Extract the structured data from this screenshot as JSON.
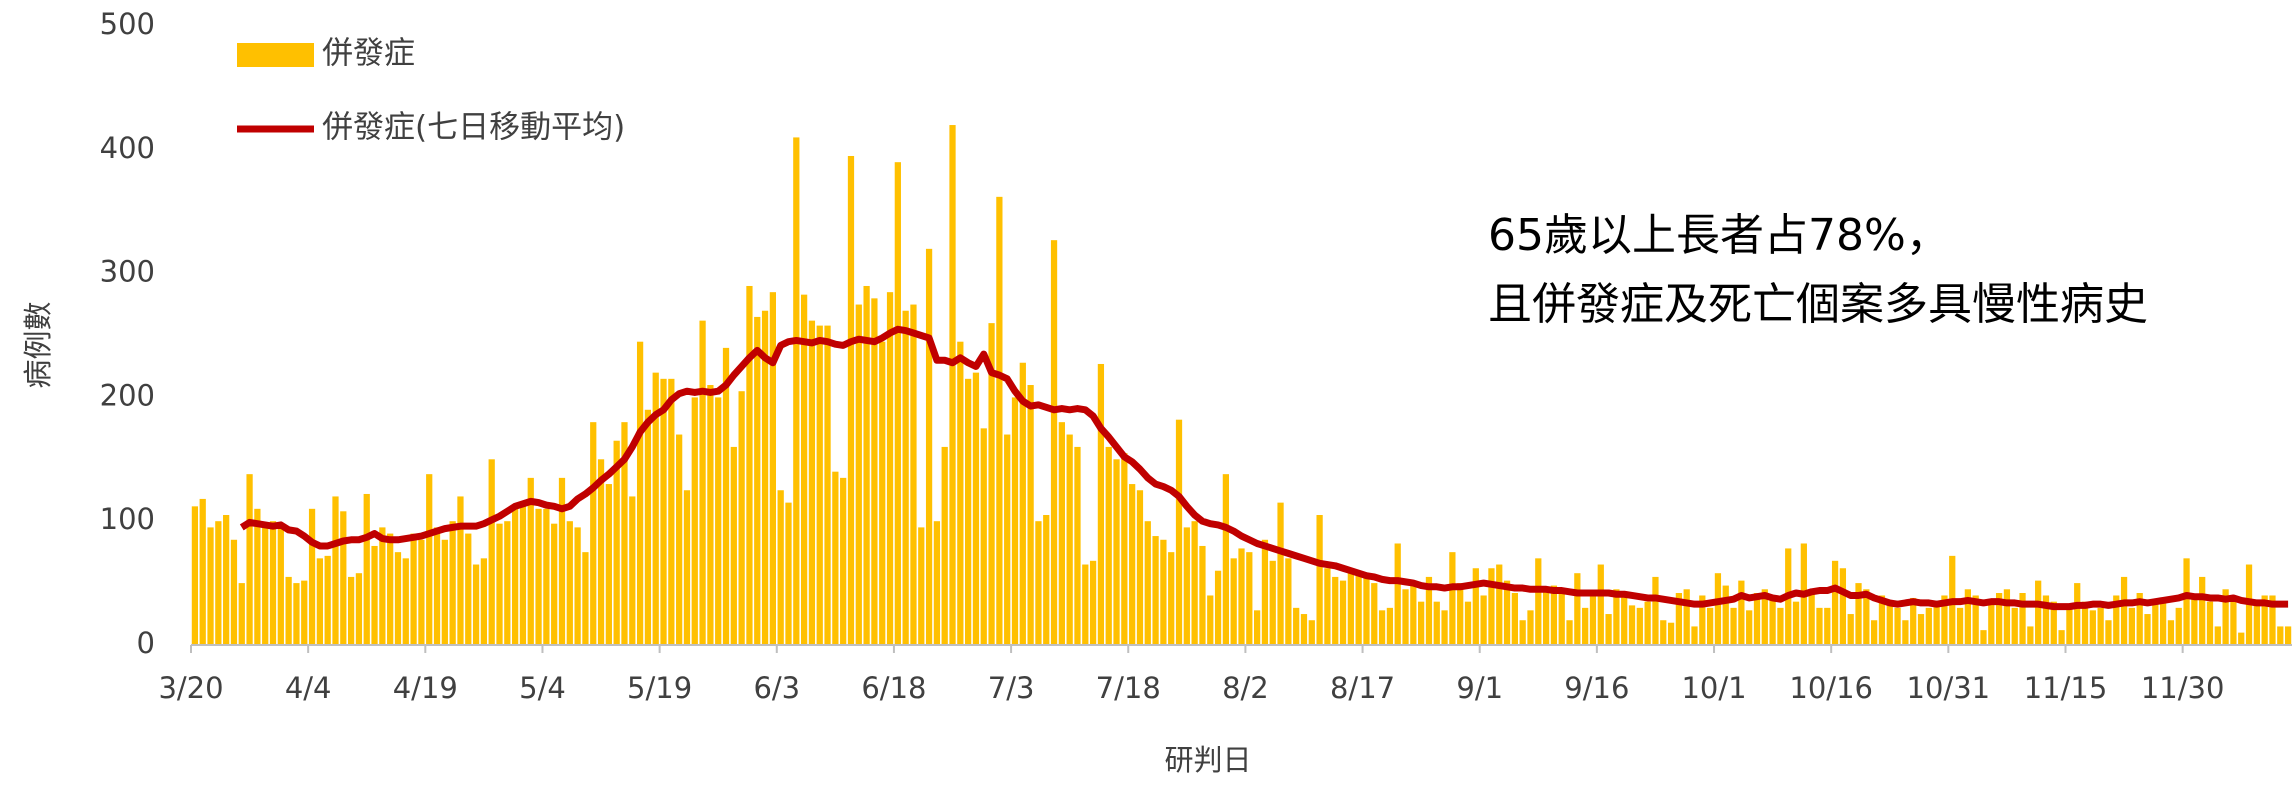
{
  "chart_data": {
    "type": "bar",
    "y_label": "病例數",
    "x_label": "研判日",
    "annotations": [
      "65歲以上長者占78%，",
      "且併發症及死亡個案多具慢性病史"
    ],
    "categories": [
      "3/20",
      null,
      null,
      null,
      null,
      null,
      null,
      null,
      null,
      null,
      null,
      null,
      null,
      null,
      null,
      "4/4",
      null,
      null,
      null,
      null,
      null,
      null,
      null,
      null,
      null,
      null,
      null,
      null,
      null,
      null,
      "4/19",
      null,
      null,
      null,
      null,
      null,
      null,
      null,
      null,
      null,
      null,
      null,
      null,
      null,
      null,
      "5/4",
      null,
      null,
      null,
      null,
      null,
      null,
      null,
      null,
      null,
      null,
      null,
      null,
      null,
      null,
      "5/19",
      null,
      null,
      null,
      null,
      null,
      null,
      null,
      null,
      null,
      null,
      null,
      null,
      null,
      null,
      "6/3",
      null,
      null,
      null,
      null,
      null,
      null,
      null,
      null,
      null,
      null,
      null,
      null,
      null,
      null,
      "6/18",
      null,
      null,
      null,
      null,
      null,
      null,
      null,
      null,
      null,
      null,
      null,
      null,
      null,
      null,
      "7/3",
      null,
      null,
      null,
      null,
      null,
      null,
      null,
      null,
      null,
      null,
      null,
      null,
      null,
      null,
      "7/18",
      null,
      null,
      null,
      null,
      null,
      null,
      null,
      null,
      null,
      null,
      null,
      null,
      null,
      null,
      "8/2",
      null,
      null,
      null,
      null,
      null,
      null,
      null,
      null,
      null,
      null,
      null,
      null,
      null,
      null,
      "8/17",
      null,
      null,
      null,
      null,
      null,
      null,
      null,
      null,
      null,
      null,
      null,
      null,
      null,
      null,
      "9/1",
      null,
      null,
      null,
      null,
      null,
      null,
      null,
      null,
      null,
      null,
      null,
      null,
      null,
      null,
      "9/16",
      null,
      null,
      null,
      null,
      null,
      null,
      null,
      null,
      null,
      null,
      null,
      null,
      null,
      null,
      "10/1",
      null,
      null,
      null,
      null,
      null,
      null,
      null,
      null,
      null,
      null,
      null,
      null,
      null,
      null,
      "10/16",
      null,
      null,
      null,
      null,
      null,
      null,
      null,
      null,
      null,
      null,
      null,
      null,
      null,
      null,
      "10/31",
      null,
      null,
      null,
      null,
      null,
      null,
      null,
      null,
      null,
      null,
      null,
      null,
      null,
      null,
      "11/15",
      null,
      null,
      null,
      null,
      null,
      null,
      null,
      null,
      null,
      null,
      null,
      null,
      null,
      null,
      "11/30",
      null,
      null,
      null,
      null,
      null,
      null,
      null,
      null,
      null,
      null,
      null,
      null,
      null
    ],
    "series": [
      {
        "name": "併發症",
        "type": "bar",
        "color": "#ffc000",
        "values": [
          112,
          118,
          95,
          100,
          105,
          85,
          50,
          138,
          110,
          95,
          100,
          95,
          55,
          50,
          52,
          110,
          70,
          72,
          120,
          108,
          55,
          58,
          122,
          80,
          95,
          90,
          75,
          70,
          90,
          85,
          138,
          95,
          85,
          100,
          120,
          90,
          65,
          70,
          150,
          98,
          100,
          110,
          112,
          135,
          110,
          110,
          98,
          135,
          100,
          95,
          75,
          180,
          150,
          130,
          165,
          180,
          120,
          245,
          190,
          220,
          215,
          215,
          170,
          125,
          200,
          262,
          210,
          200,
          240,
          160,
          205,
          290,
          265,
          270,
          285,
          125,
          115,
          410,
          283,
          262,
          258,
          258,
          140,
          135,
          395,
          275,
          290,
          280,
          245,
          285,
          390,
          270,
          275,
          95,
          320,
          100,
          160,
          420,
          245,
          215,
          220,
          175,
          260,
          362,
          170,
          200,
          228,
          210,
          100,
          105,
          327,
          180,
          170,
          160,
          65,
          68,
          227,
          160,
          150,
          155,
          130,
          125,
          100,
          88,
          85,
          75,
          182,
          95,
          100,
          80,
          40,
          60,
          138,
          70,
          78,
          75,
          28,
          85,
          68,
          115,
          70,
          30,
          25,
          20,
          105,
          62,
          55,
          52,
          60,
          58,
          55,
          50,
          28,
          30,
          82,
          45,
          50,
          35,
          55,
          35,
          28,
          75,
          50,
          35,
          62,
          40,
          62,
          65,
          52,
          42,
          20,
          28,
          70,
          44,
          48,
          45,
          20,
          58,
          30,
          42,
          65,
          25,
          45,
          40,
          32,
          30,
          35,
          55,
          20,
          18,
          42,
          45,
          15,
          40,
          30,
          58,
          48,
          30,
          52,
          28,
          42,
          45,
          40,
          30,
          78,
          35,
          82,
          42,
          30,
          30,
          68,
          62,
          25,
          50,
          45,
          20,
          40,
          35,
          30,
          20,
          38,
          25,
          30,
          32,
          40,
          72,
          30,
          45,
          40,
          12,
          35,
          42,
          45,
          30,
          42,
          15,
          52,
          40,
          35,
          12,
          30,
          50,
          35,
          28,
          30,
          20,
          40,
          55,
          30,
          42,
          25,
          35,
          38,
          20,
          30,
          70,
          40,
          55,
          35,
          15,
          45,
          38,
          10,
          65,
          35,
          40,
          40,
          15,
          15
        ]
      },
      {
        "name": "併發症(七日移動平均)",
        "type": "line",
        "color": "#c00000",
        "values": [
          null,
          null,
          null,
          null,
          null,
          null,
          95,
          99,
          98,
          97,
          96,
          97,
          93,
          92,
          88,
          83,
          80,
          80,
          82,
          84,
          85,
          85,
          87,
          90,
          86,
          85,
          85,
          86,
          87,
          88,
          90,
          92,
          94,
          95,
          96,
          96,
          96,
          98,
          101,
          104,
          108,
          112,
          114,
          116,
          115,
          113,
          112,
          110,
          112,
          118,
          122,
          127,
          133,
          138,
          144,
          150,
          160,
          172,
          180,
          186,
          190,
          198,
          203,
          205,
          204,
          205,
          204,
          205,
          210,
          218,
          225,
          232,
          238,
          232,
          228,
          242,
          245,
          246,
          245,
          244,
          246,
          245,
          243,
          242,
          245,
          247,
          246,
          245,
          248,
          252,
          255,
          254,
          252,
          250,
          248,
          230,
          230,
          228,
          232,
          228,
          225,
          235,
          220,
          218,
          215,
          205,
          197,
          193,
          194,
          192,
          190,
          191,
          190,
          191,
          190,
          185,
          175,
          168,
          160,
          152,
          148,
          142,
          135,
          130,
          128,
          125,
          120,
          112,
          105,
          100,
          98,
          97,
          95,
          92,
          88,
          85,
          82,
          80,
          78,
          76,
          74,
          72,
          70,
          68,
          66,
          65,
          64,
          62,
          60,
          58,
          56,
          55,
          53,
          52,
          52,
          51,
          50,
          48,
          47,
          47,
          46,
          47,
          47,
          48,
          49,
          50,
          49,
          48,
          47,
          46,
          46,
          45,
          45,
          45,
          44,
          44,
          43,
          42,
          42,
          42,
          42,
          42,
          41,
          41,
          40,
          39,
          38,
          38,
          37,
          36,
          35,
          34,
          33,
          33,
          34,
          35,
          36,
          37,
          40,
          38,
          39,
          40,
          38,
          37,
          40,
          42,
          41,
          43,
          44,
          44,
          46,
          43,
          40,
          40,
          41,
          38,
          36,
          34,
          33,
          34,
          35,
          34,
          34,
          33,
          34,
          35,
          35,
          36,
          35,
          34,
          35,
          35,
          34,
          34,
          33,
          33,
          33,
          32,
          31,
          31,
          31,
          32,
          32,
          33,
          33,
          32,
          33,
          34,
          34,
          35,
          34,
          35,
          36,
          37,
          38,
          40,
          39,
          39,
          38,
          38,
          37,
          38,
          36,
          35,
          34,
          34,
          33,
          33,
          33
        ]
      }
    ],
    "ylim": [
      0,
      500
    ],
    "yticks": [
      0,
      100,
      200,
      300,
      400,
      500
    ],
    "grid": false
  }
}
